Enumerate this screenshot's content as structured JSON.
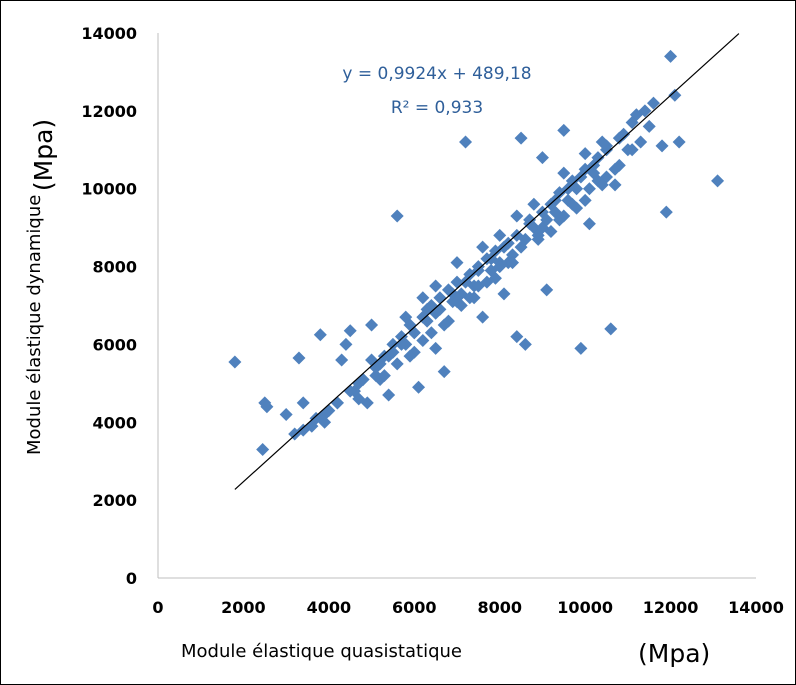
{
  "chart_data": {
    "type": "scatter",
    "title": "",
    "xlabel": "Module élastique quasistatique",
    "xlabel_unit": "(Mpa)",
    "ylabel": "Module élastique dynamique",
    "ylabel_unit": "(Mpa)",
    "xlim": [
      0,
      14000
    ],
    "ylim": [
      0,
      14000
    ],
    "x_ticks": [
      "0",
      "2000",
      "4000",
      "6000",
      "8000",
      "10000",
      "12000",
      "14000"
    ],
    "y_ticks": [
      "0",
      "2000",
      "4000",
      "6000",
      "8000",
      "10000",
      "12000",
      "14000"
    ],
    "grid": false,
    "legend": "none",
    "marker": "diamond",
    "marker_color": "#4f81bd",
    "trendline_color": "#000000",
    "annotation_color": "#2f5f9a",
    "trendline": {
      "equation": "y = 0,9924x + 489,18",
      "r_squared": "R² = 0,933",
      "slope": 0.9924,
      "intercept": 489.18,
      "x_range": [
        1800,
        13600
      ]
    },
    "series": [
      {
        "points": [
          [
            1800,
            5550
          ],
          [
            2450,
            3300
          ],
          [
            2500,
            4500
          ],
          [
            2550,
            4400
          ],
          [
            3000,
            4200
          ],
          [
            3300,
            5650
          ],
          [
            3400,
            4500
          ],
          [
            3200,
            3700
          ],
          [
            3400,
            3800
          ],
          [
            3600,
            3900
          ],
          [
            3700,
            4100
          ],
          [
            3800,
            6250
          ],
          [
            3900,
            4000
          ],
          [
            4000,
            4300
          ],
          [
            4200,
            4500
          ],
          [
            4300,
            5600
          ],
          [
            4400,
            6000
          ],
          [
            4500,
            6350
          ],
          [
            4600,
            4800
          ],
          [
            4700,
            5000
          ],
          [
            4800,
            5100
          ],
          [
            4900,
            4500
          ],
          [
            5000,
            6500
          ],
          [
            5100,
            5200
          ],
          [
            5200,
            5500
          ],
          [
            5300,
            5700
          ],
          [
            5400,
            4700
          ],
          [
            5500,
            6000
          ],
          [
            5600,
            9300
          ],
          [
            5700,
            6200
          ],
          [
            5800,
            6000
          ],
          [
            5900,
            6500
          ],
          [
            6000,
            6300
          ],
          [
            6100,
            4900
          ],
          [
            6200,
            6700
          ],
          [
            6300,
            6900
          ],
          [
            6400,
            7000
          ],
          [
            6500,
            5900
          ],
          [
            6600,
            7200
          ],
          [
            6700,
            5300
          ],
          [
            6800,
            7400
          ],
          [
            6900,
            7100
          ],
          [
            7000,
            7600
          ],
          [
            7100,
            7300
          ],
          [
            7200,
            11200
          ],
          [
            7300,
            7800
          ],
          [
            7400,
            7500
          ],
          [
            7500,
            8000
          ],
          [
            7600,
            6700
          ],
          [
            7700,
            8200
          ],
          [
            7800,
            7900
          ],
          [
            7900,
            8400
          ],
          [
            8000,
            8100
          ],
          [
            8100,
            7300
          ],
          [
            8200,
            8600
          ],
          [
            8300,
            8300
          ],
          [
            8400,
            6200
          ],
          [
            8500,
            11300
          ],
          [
            8600,
            6000
          ],
          [
            8700,
            9200
          ],
          [
            8800,
            9000
          ],
          [
            8900,
            8800
          ],
          [
            9000,
            10800
          ],
          [
            9100,
            7400
          ],
          [
            9200,
            9600
          ],
          [
            9300,
            9400
          ],
          [
            9400,
            9900
          ],
          [
            9500,
            11500
          ],
          [
            9600,
            9700
          ],
          [
            9700,
            10200
          ],
          [
            9800,
            10000
          ],
          [
            9900,
            5900
          ],
          [
            10000,
            10500
          ],
          [
            10100,
            9100
          ],
          [
            10200,
            10400
          ],
          [
            10300,
            10800
          ],
          [
            10400,
            11200
          ],
          [
            10500,
            11000
          ],
          [
            10600,
            6400
          ],
          [
            10700,
            10100
          ],
          [
            10800,
            11300
          ],
          [
            10900,
            11400
          ],
          [
            11000,
            11000
          ],
          [
            11200,
            11900
          ],
          [
            11400,
            12000
          ],
          [
            11600,
            12200
          ],
          [
            11800,
            11100
          ],
          [
            11900,
            9400
          ],
          [
            12000,
            13400
          ],
          [
            12100,
            12400
          ],
          [
            12200,
            11200
          ],
          [
            13100,
            10200
          ],
          [
            11500,
            11600
          ],
          [
            11100,
            11700
          ],
          [
            10500,
            11100
          ],
          [
            10200,
            10600
          ],
          [
            9900,
            10300
          ],
          [
            9600,
            10000
          ],
          [
            9300,
            9700
          ],
          [
            9000,
            9400
          ],
          [
            8700,
            9100
          ],
          [
            8400,
            8800
          ],
          [
            8100,
            8500
          ],
          [
            7800,
            8200
          ],
          [
            7500,
            7900
          ],
          [
            7200,
            7600
          ],
          [
            6900,
            7300
          ],
          [
            6600,
            6900
          ],
          [
            6300,
            6600
          ],
          [
            6000,
            6300
          ],
          [
            5700,
            6000
          ],
          [
            5400,
            5700
          ],
          [
            5100,
            5400
          ],
          [
            4800,
            5100
          ],
          [
            4500,
            4800
          ],
          [
            4200,
            4500
          ],
          [
            3900,
            4200
          ],
          [
            3600,
            3900
          ],
          [
            5000,
            5600
          ],
          [
            5500,
            5800
          ],
          [
            6000,
            5800
          ],
          [
            6500,
            6800
          ],
          [
            7000,
            7100
          ],
          [
            7500,
            7500
          ],
          [
            8000,
            8000
          ],
          [
            8500,
            8500
          ],
          [
            9000,
            9000
          ],
          [
            9500,
            9300
          ],
          [
            10000,
            9700
          ],
          [
            10500,
            10300
          ],
          [
            6200,
            6100
          ],
          [
            6800,
            6600
          ],
          [
            7300,
            7200
          ],
          [
            7700,
            7600
          ],
          [
            8200,
            8100
          ],
          [
            8600,
            8700
          ],
          [
            9100,
            9200
          ],
          [
            9700,
            9600
          ],
          [
            10300,
            10200
          ],
          [
            10800,
            10600
          ],
          [
            5200,
            5100
          ],
          [
            5600,
            5500
          ],
          [
            6400,
            6300
          ],
          [
            7100,
            7000
          ],
          [
            7900,
            7700
          ],
          [
            8900,
            8700
          ],
          [
            9400,
            9200
          ],
          [
            10100,
            10000
          ],
          [
            10700,
            10500
          ],
          [
            11100,
            11000
          ],
          [
            4700,
            4600
          ],
          [
            5300,
            5200
          ],
          [
            5900,
            5700
          ],
          [
            6700,
            6500
          ],
          [
            7400,
            7200
          ],
          [
            8300,
            8100
          ],
          [
            9200,
            8900
          ],
          [
            9800,
            9500
          ],
          [
            10400,
            10100
          ],
          [
            11300,
            11200
          ],
          [
            7600,
            8500
          ],
          [
            8000,
            8800
          ],
          [
            8800,
            9600
          ],
          [
            7000,
            8100
          ],
          [
            6500,
            7500
          ],
          [
            9500,
            10400
          ],
          [
            10000,
            10900
          ],
          [
            8400,
            9300
          ],
          [
            6200,
            7200
          ],
          [
            5800,
            6700
          ]
        ]
      }
    ]
  }
}
